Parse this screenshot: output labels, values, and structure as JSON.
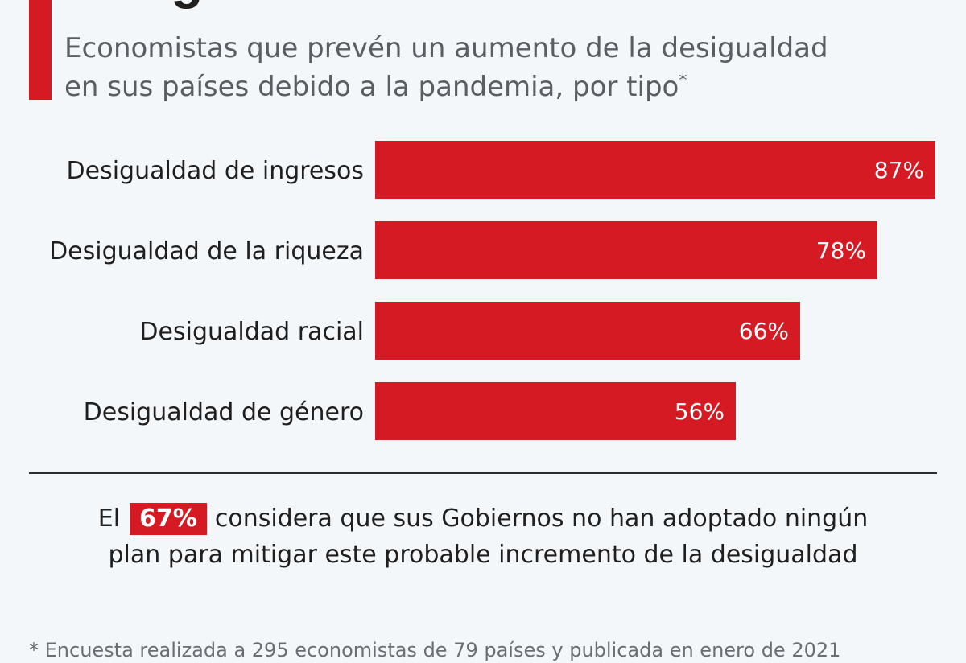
{
  "header": {
    "title": "desigualdades",
    "subtitle_line1": "Economistas que prevén un aumento de la desigualdad",
    "subtitle_line2": "en sus países debido a la pandemia, por tipo",
    "subtitle_mark": "*"
  },
  "chart_data": {
    "type": "bar",
    "orientation": "horizontal",
    "categories": [
      "Desigualdad de ingresos",
      "Desigualdad de la riqueza",
      "Desigualdad racial",
      "Desigualdad de género"
    ],
    "values": [
      87,
      78,
      66,
      56
    ],
    "value_labels": [
      "87%",
      "78%",
      "66%",
      "56%"
    ],
    "unit": "%",
    "xlim": [
      0,
      87
    ],
    "grid": false,
    "bar_color": "#d51a24"
  },
  "highlight": {
    "before": "El",
    "percent": "67%",
    "after": "considera que sus Gobiernos no han adoptado ningún plan para mitigar este probable incremento de la desigualdad"
  },
  "footnote": {
    "text": "* Encuesta realizada a 295 economistas de 79 países y publicada en enero de 2021"
  },
  "colors": {
    "accent": "#d51a24",
    "background": "#f4f7fa"
  }
}
